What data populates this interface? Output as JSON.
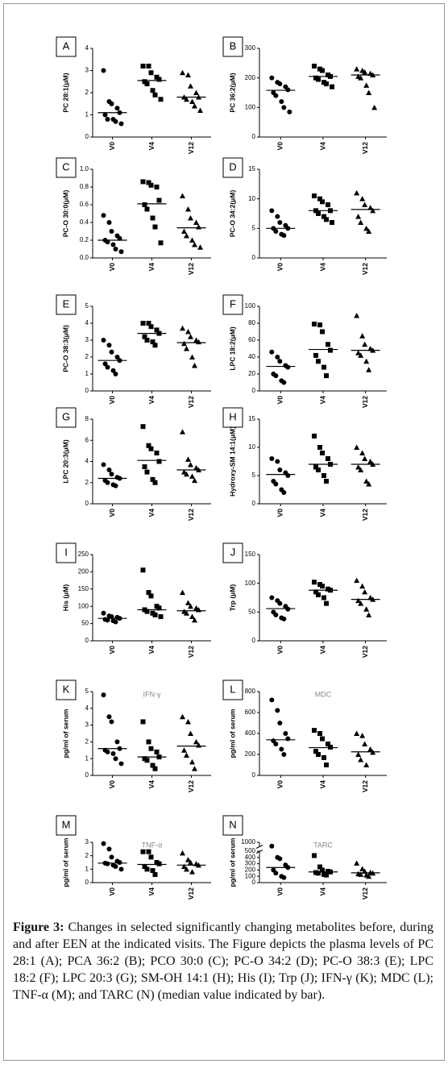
{
  "chart_data": [
    {
      "type": "scatter",
      "panel": "A",
      "ylabel": "PC 28:1(μM)",
      "color": "#000000",
      "categories": [
        "V0",
        "V4",
        "V12"
      ],
      "ylim": [
        0,
        4
      ],
      "yticks": [
        0,
        1,
        2,
        3,
        4
      ],
      "series": [
        {
          "marker": "circle",
          "values": [
            3.0,
            1.6,
            1.5,
            1.3,
            1.1,
            1.0,
            0.8,
            0.8,
            0.7,
            0.6
          ],
          "median": 1.1
        },
        {
          "marker": "square",
          "values": [
            3.2,
            3.2,
            2.9,
            2.7,
            2.6,
            2.5,
            2.4,
            2.1,
            1.9,
            1.7
          ],
          "median": 2.55
        },
        {
          "marker": "triangle",
          "values": [
            2.9,
            2.8,
            2.3,
            2.0,
            1.8,
            1.8,
            1.7,
            1.6,
            1.4,
            1.2
          ],
          "median": 1.8
        }
      ]
    },
    {
      "type": "scatter",
      "panel": "B",
      "ylabel": "PC 36:2(μM)",
      "color": "#000000",
      "categories": [
        "V0",
        "V4",
        "V12"
      ],
      "ylim": [
        0,
        300
      ],
      "yticks": [
        0,
        100,
        200,
        300
      ],
      "series": [
        {
          "marker": "circle",
          "values": [
            200,
            185,
            180,
            170,
            160,
            150,
            140,
            120,
            100,
            85
          ],
          "median": 158
        },
        {
          "marker": "square",
          "values": [
            240,
            230,
            225,
            210,
            205,
            200,
            195,
            185,
            180,
            170
          ],
          "median": 205
        },
        {
          "marker": "triangle",
          "values": [
            230,
            225,
            220,
            215,
            210,
            205,
            200,
            175,
            150,
            100
          ],
          "median": 210
        }
      ]
    },
    {
      "type": "scatter",
      "panel": "C",
      "ylabel": "PC-O 30:0(μM)",
      "color": "#000000",
      "categories": [
        "V0",
        "V4",
        "V12"
      ],
      "ylim": [
        0,
        1.0
      ],
      "yticks": [
        {
          "value": 0,
          "label": "0.0"
        },
        {
          "value": 0.2,
          "label": "0.2"
        },
        {
          "value": 0.4,
          "label": "0.4"
        },
        {
          "value": 0.6,
          "label": "0.6"
        },
        {
          "value": 0.8,
          "label": "0.8"
        },
        {
          "value": 1.0,
          "label": "1.0"
        }
      ],
      "series": [
        {
          "marker": "circle",
          "values": [
            0.48,
            0.4,
            0.3,
            0.25,
            0.22,
            0.2,
            0.18,
            0.15,
            0.1,
            0.07
          ],
          "median": 0.2
        },
        {
          "marker": "square",
          "values": [
            0.86,
            0.85,
            0.82,
            0.8,
            0.65,
            0.6,
            0.55,
            0.45,
            0.35,
            0.17
          ],
          "median": 0.61
        },
        {
          "marker": "triangle",
          "values": [
            0.7,
            0.55,
            0.45,
            0.4,
            0.35,
            0.3,
            0.25,
            0.2,
            0.15,
            0.12
          ],
          "median": 0.34
        }
      ]
    },
    {
      "type": "scatter",
      "panel": "D",
      "ylabel": "PC-O 34:2(μM)",
      "color": "#000000",
      "categories": [
        "V0",
        "V4",
        "V12"
      ],
      "ylim": [
        0,
        15
      ],
      "yticks": [
        0,
        5,
        10,
        15
      ],
      "series": [
        {
          "marker": "circle",
          "values": [
            8,
            7,
            6,
            5.5,
            5,
            5,
            4.5,
            4,
            3.8
          ],
          "median": 5
        },
        {
          "marker": "square",
          "values": [
            10.5,
            10,
            9.5,
            9,
            8,
            8,
            7.5,
            7,
            6.5,
            6
          ],
          "median": 8
        },
        {
          "marker": "triangle",
          "values": [
            11,
            10,
            9,
            8.5,
            8,
            7,
            6,
            5,
            4.5
          ],
          "median": 8.2
        }
      ]
    },
    {
      "type": "scatter",
      "panel": "E",
      "ylabel": "PC-O 38:3(μM)",
      "color": "#000000",
      "categories": [
        "V0",
        "V4",
        "V12"
      ],
      "ylim": [
        0,
        5
      ],
      "yticks": [
        0,
        1,
        2,
        3,
        4,
        5
      ],
      "series": [
        {
          "marker": "circle",
          "values": [
            3.0,
            2.7,
            2.3,
            2.0,
            1.8,
            1.6,
            1.4,
            1.2,
            1.0
          ],
          "median": 1.8
        },
        {
          "marker": "square",
          "values": [
            4.0,
            4.0,
            3.8,
            3.6,
            3.4,
            3.2,
            3.0,
            2.9,
            2.7
          ],
          "median": 3.4
        },
        {
          "marker": "triangle",
          "values": [
            3.7,
            3.5,
            3.2,
            3.0,
            2.9,
            2.8,
            2.5,
            2.0,
            1.5
          ],
          "median": 2.85
        }
      ]
    },
    {
      "type": "scatter",
      "panel": "F",
      "ylabel": "LPC 18:2(μM)",
      "color": "#000000",
      "categories": [
        "V0",
        "V4",
        "V12"
      ],
      "ylim": [
        0,
        100
      ],
      "yticks": [
        0,
        20,
        40,
        60,
        80,
        100
      ],
      "series": [
        {
          "marker": "circle",
          "values": [
            46,
            40,
            35,
            30,
            28,
            20,
            18,
            12,
            10
          ],
          "median": 29
        },
        {
          "marker": "square",
          "values": [
            79,
            78,
            70,
            55,
            48,
            42,
            35,
            28,
            18
          ],
          "median": 49
        },
        {
          "marker": "triangle",
          "values": [
            89,
            65,
            55,
            50,
            48,
            45,
            42,
            35,
            25
          ],
          "median": 48
        }
      ]
    },
    {
      "type": "scatter",
      "panel": "G",
      "ylabel": "LPC 20:3(μM)",
      "color": "#000000",
      "categories": [
        "V0",
        "V4",
        "V12"
      ],
      "ylim": [
        0,
        8
      ],
      "yticks": [
        0,
        2,
        4,
        6,
        8
      ],
      "series": [
        {
          "marker": "circle",
          "values": [
            3.7,
            3.2,
            2.8,
            2.5,
            2.4,
            2.2,
            2.0,
            1.8,
            1.7
          ],
          "median": 2.4
        },
        {
          "marker": "square",
          "values": [
            7.3,
            5.5,
            5.2,
            4.8,
            4.0,
            3.5,
            3.0,
            2.3,
            2.0
          ],
          "median": 4.1
        },
        {
          "marker": "triangle",
          "values": [
            6.8,
            4.2,
            3.7,
            3.4,
            3.2,
            3.0,
            2.8,
            2.6,
            2.2
          ],
          "median": 3.2
        }
      ]
    },
    {
      "type": "scatter",
      "panel": "H",
      "ylabel": "Hydroxy-SM 14:1(μM)",
      "color": "#000000",
      "categories": [
        "V0",
        "V4",
        "V12"
      ],
      "ylim": [
        0,
        15
      ],
      "yticks": [
        0,
        5,
        10,
        15
      ],
      "series": [
        {
          "marker": "circle",
          "values": [
            8,
            7.5,
            6,
            5.5,
            5,
            4,
            3.5,
            2.5,
            2
          ],
          "median": 5.2
        },
        {
          "marker": "square",
          "values": [
            12,
            10,
            9,
            8,
            7,
            6.5,
            6,
            5,
            4
          ],
          "median": 7
        },
        {
          "marker": "triangle",
          "values": [
            10,
            9,
            8,
            7.5,
            7,
            6.5,
            6,
            4,
            3.5
          ],
          "median": 7
        }
      ]
    },
    {
      "type": "scatter",
      "panel": "I",
      "ylabel": "His (μM)",
      "color": "#000000",
      "categories": [
        "V0",
        "V4",
        "V12"
      ],
      "ylim": [
        0,
        250
      ],
      "yticks": [
        0,
        50,
        100,
        150,
        200,
        250
      ],
      "series": [
        {
          "marker": "circle",
          "values": [
            80,
            72,
            70,
            68,
            65,
            62,
            60,
            58,
            55
          ],
          "median": 65
        },
        {
          "marker": "square",
          "values": [
            205,
            140,
            130,
            100,
            95,
            90,
            85,
            80,
            75,
            70
          ],
          "median": 90
        },
        {
          "marker": "triangle",
          "values": [
            140,
            110,
            100,
            95,
            90,
            85,
            80,
            70,
            60
          ],
          "median": 87
        }
      ]
    },
    {
      "type": "scatter",
      "panel": "J",
      "ylabel": "Trp (μM)",
      "color": "#000000",
      "categories": [
        "V0",
        "V4",
        "V12"
      ],
      "ylim": [
        0,
        150
      ],
      "yticks": [
        0,
        50,
        100,
        150
      ],
      "series": [
        {
          "marker": "circle",
          "values": [
            75,
            70,
            65,
            60,
            55,
            50,
            45,
            40,
            38
          ],
          "median": 56
        },
        {
          "marker": "square",
          "values": [
            102,
            98,
            95,
            90,
            88,
            85,
            80,
            75,
            65
          ],
          "median": 88
        },
        {
          "marker": "triangle",
          "values": [
            105,
            95,
            85,
            75,
            72,
            70,
            65,
            55,
            45
          ],
          "median": 72
        }
      ]
    },
    {
      "type": "scatter",
      "panel": "K",
      "title": "IFN-γ",
      "ylabel": "pg/ml of serum",
      "color": "#000000",
      "categories": [
        "V0",
        "V4",
        "V12"
      ],
      "ylim": [
        0,
        5
      ],
      "yticks": [
        0,
        1,
        2,
        3,
        4,
        5
      ],
      "series": [
        {
          "marker": "circle",
          "values": [
            4.8,
            3.5,
            3.2,
            2.0,
            1.6,
            1.5,
            1.4,
            1.3,
            1.0,
            0.7
          ],
          "median": 1.6
        },
        {
          "marker": "square",
          "values": [
            3.2,
            2.0,
            1.6,
            1.4,
            1.1,
            1.0,
            0.9,
            0.6,
            0.4
          ],
          "median": 1.1
        },
        {
          "marker": "triangle",
          "values": [
            3.5,
            3.2,
            2.5,
            2.0,
            1.8,
            1.5,
            1.2,
            0.8,
            0.4
          ],
          "median": 1.75
        }
      ]
    },
    {
      "type": "scatter",
      "panel": "L",
      "title": "MDC",
      "ylabel": "pg/ml of serum",
      "color": "#000000",
      "categories": [
        "V0",
        "V4",
        "V12"
      ],
      "ylim": [
        0,
        800
      ],
      "yticks": [
        0,
        200,
        400,
        600,
        800
      ],
      "series": [
        {
          "marker": "circle",
          "values": [
            720,
            620,
            500,
            400,
            350,
            330,
            300,
            250,
            200
          ],
          "median": 340
        },
        {
          "marker": "square",
          "values": [
            430,
            400,
            350,
            300,
            270,
            230,
            200,
            170,
            100
          ],
          "median": 265
        },
        {
          "marker": "triangle",
          "values": [
            400,
            380,
            300,
            250,
            220,
            200,
            150,
            100
          ],
          "median": 225
        }
      ]
    },
    {
      "type": "scatter",
      "panel": "M",
      "title": "TNF-α",
      "ylabel": "pg/ml of serum",
      "color": "#000000",
      "categories": [
        "V0",
        "V4",
        "V12"
      ],
      "ylim": [
        0,
        3
      ],
      "yticks": [
        0,
        1,
        2,
        3
      ],
      "series": [
        {
          "marker": "circle",
          "values": [
            2.9,
            2.5,
            1.9,
            1.6,
            1.5,
            1.45,
            1.4,
            1.3,
            1.2,
            1.0
          ],
          "median": 1.45
        },
        {
          "marker": "square",
          "values": [
            2.3,
            2.3,
            1.9,
            1.5,
            1.4,
            1.2,
            1.0,
            0.9,
            0.6
          ],
          "median": 1.35
        },
        {
          "marker": "triangle",
          "values": [
            2.2,
            1.7,
            1.5,
            1.4,
            1.3,
            1.2,
            1.0,
            0.8
          ],
          "median": 1.3
        }
      ]
    },
    {
      "type": "scatter",
      "panel": "N",
      "title": "TARC",
      "ylabel": "pg/ml of serum",
      "color": "#000000",
      "categories": [
        "V0",
        "V4",
        "V12"
      ],
      "ylim": [
        0,
        1000
      ],
      "axis_break": [
        500,
        950
      ],
      "yticks": [
        0,
        100,
        200,
        300,
        400,
        500,
        1000
      ],
      "series": [
        {
          "marker": "circle",
          "values": [
            960,
            400,
            380,
            280,
            240,
            200,
            150,
            100,
            80
          ],
          "median": 240
        },
        {
          "marker": "square",
          "values": [
            430,
            250,
            200,
            180,
            170,
            160,
            150,
            130,
            120
          ],
          "median": 170
        },
        {
          "marker": "triangle",
          "values": [
            310,
            220,
            180,
            160,
            150,
            140,
            130,
            120,
            100
          ],
          "median": 155
        }
      ]
    }
  ],
  "caption": {
    "label": "Figure 3:",
    "text": "Changes in selected significantly changing metabolites before, during and after EEN at the indicated visits. The Figure depicts the plasma levels of PC 28:1 (A); PCA 36:2 (B); PCO 30:0 (C); PC-O 34:2 (D); PC-O 38:3 (E); LPC 18:2 (F); LPC 20:3 (G); SM-OH 14:1 (H); His (I); Trp (J); IFN-γ (K); MDC (L); TNF-α (M); and TARC (N) (median value indicated by bar)."
  }
}
